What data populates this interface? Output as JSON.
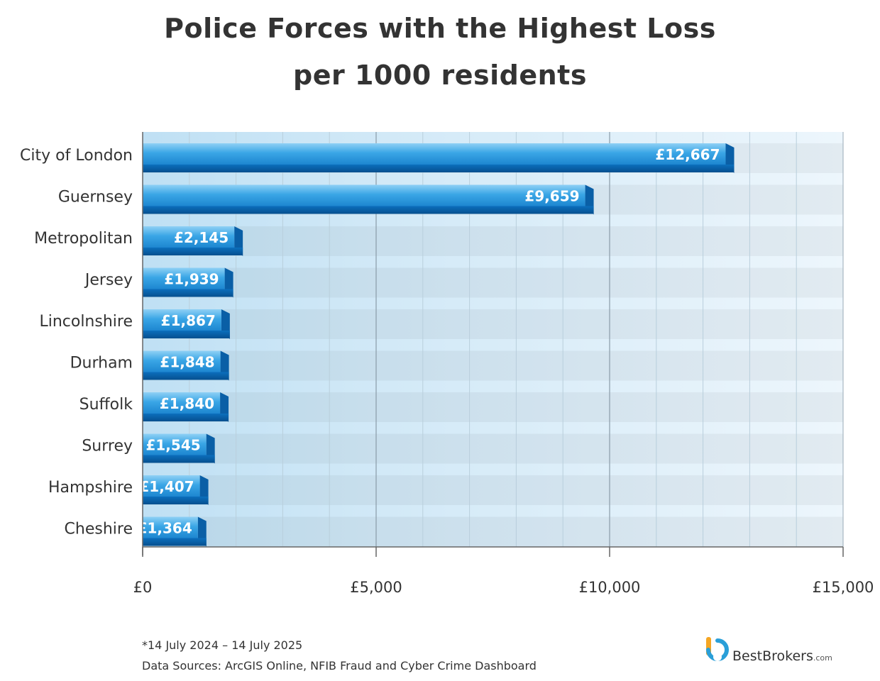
{
  "chart_data": {
    "type": "bar",
    "orientation": "horizontal",
    "title": "Police Forces with the Highest Loss",
    "subtitle": "per 1000 residents",
    "categories": [
      "City of London",
      "Guernsey",
      "Metropolitan",
      "Jersey",
      "Lincolnshire",
      "Durham",
      "Suffolk",
      "Surrey",
      "Hampshire",
      "Cheshire"
    ],
    "values": [
      12667,
      9659,
      2145,
      1939,
      1867,
      1848,
      1840,
      1545,
      1407,
      1364
    ],
    "value_labels": [
      "£12,667",
      "£9,659",
      "£2,145",
      "£1,939",
      "£1,867",
      "£1,848",
      "£1,840",
      "£1,545",
      "£1,407",
      "£1,364"
    ],
    "xlim": [
      0,
      15000
    ],
    "x_ticks": [
      0,
      5000,
      10000,
      15000
    ],
    "x_tick_labels": [
      "£0",
      "£5,000",
      "£10,000",
      "£15,000"
    ],
    "grid": true,
    "bar_color": "#2a96d8",
    "bar_dark_color": "#0a5fa6"
  },
  "footnote": {
    "date_range": "*14 July 2024 – 14 July 2025",
    "sources": "Data Sources: ArcGIS Online, NFIB Fraud and Cyber Crime Dashboard"
  },
  "logo": {
    "name": "BestBrokers",
    "suffix": ".com",
    "icon": "bestbrokers-logo-icon"
  }
}
